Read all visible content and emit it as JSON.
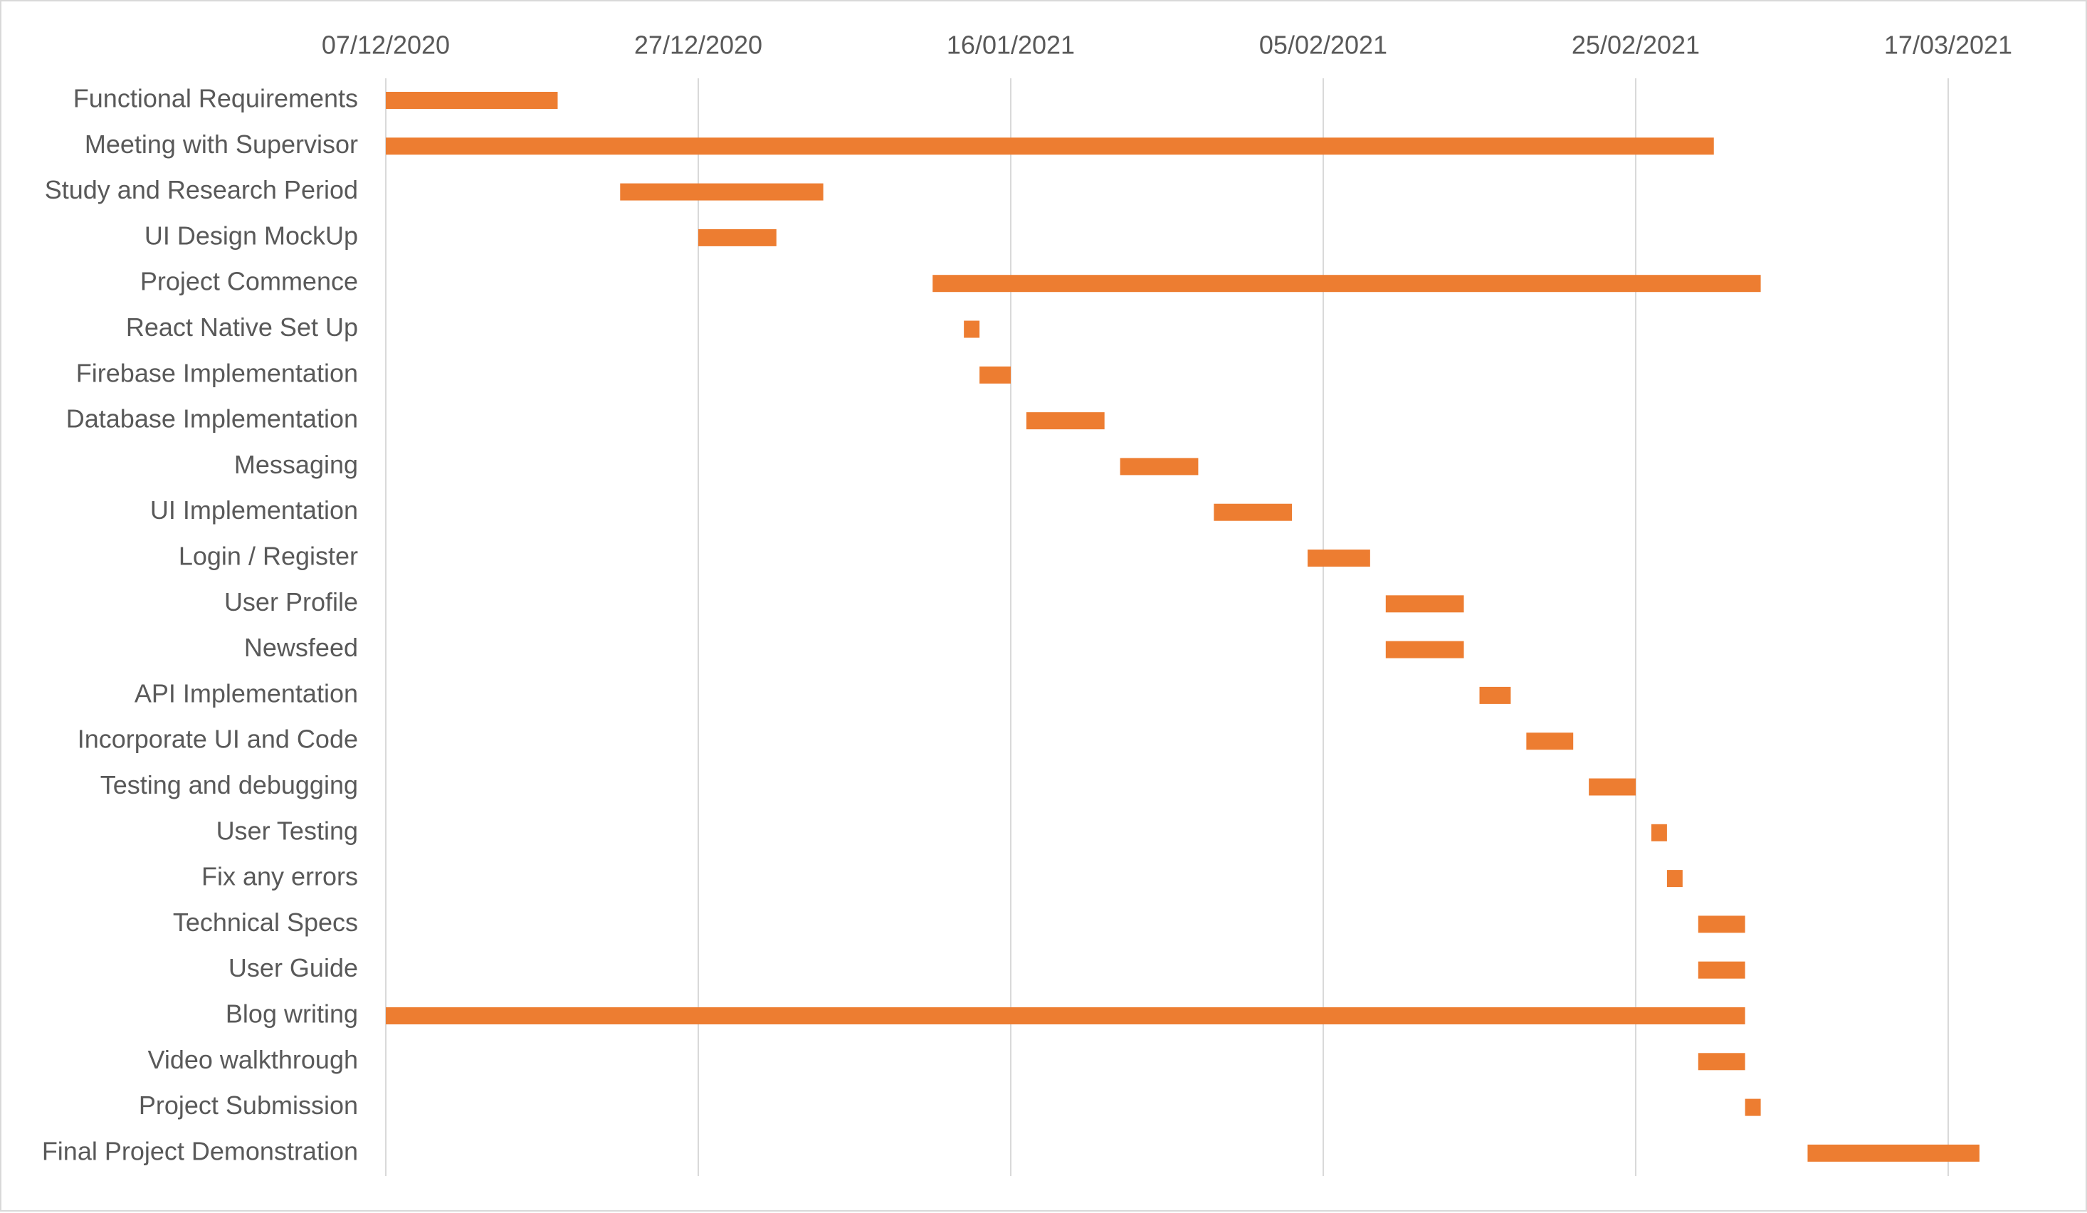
{
  "chart_data": {
    "type": "gantt-bar",
    "title": "",
    "xlabel": "",
    "ylabel": "",
    "x_axis": {
      "position": "top",
      "type": "date",
      "range": [
        "2020-12-07",
        "2021-03-17"
      ],
      "tick_step_days": 20,
      "tick_labels": [
        "07/12/2020",
        "27/12/2020",
        "16/01/2021",
        "05/02/2021",
        "25/02/2021",
        "17/03/2021"
      ],
      "grid": true
    },
    "legend": "none",
    "bar_color": "#ED7D31",
    "grid_color": "#D9D9D9",
    "label_color": "#595959",
    "tasks": [
      {
        "name": "Functional Requirements",
        "start": "2020-12-07",
        "end": "2020-12-18"
      },
      {
        "name": "Meeting with Supervisor",
        "start": "2020-12-07",
        "end": "2021-03-02"
      },
      {
        "name": "Study and Research Period",
        "start": "2020-12-22",
        "end": "2021-01-04"
      },
      {
        "name": "UI Design MockUp",
        "start": "2020-12-27",
        "end": "2021-01-01"
      },
      {
        "name": "Project Commence",
        "start": "2021-01-11",
        "end": "2021-03-05"
      },
      {
        "name": "React Native Set Up",
        "start": "2021-01-13",
        "end": "2021-01-14"
      },
      {
        "name": "Firebase Implementation",
        "start": "2021-01-14",
        "end": "2021-01-16"
      },
      {
        "name": "Database Implementation",
        "start": "2021-01-17",
        "end": "2021-01-22"
      },
      {
        "name": "Messaging",
        "start": "2021-01-23",
        "end": "2021-01-28"
      },
      {
        "name": "UI Implementation",
        "start": "2021-01-29",
        "end": "2021-02-03"
      },
      {
        "name": "Login / Register",
        "start": "2021-02-04",
        "end": "2021-02-08"
      },
      {
        "name": "User Profile",
        "start": "2021-02-09",
        "end": "2021-02-14"
      },
      {
        "name": "Newsfeed",
        "start": "2021-02-09",
        "end": "2021-02-14"
      },
      {
        "name": "API Implementation",
        "start": "2021-02-15",
        "end": "2021-02-17"
      },
      {
        "name": "Incorporate UI and Code",
        "start": "2021-02-18",
        "end": "2021-02-21"
      },
      {
        "name": "Testing and debugging",
        "start": "2021-02-22",
        "end": "2021-02-25"
      },
      {
        "name": "User Testing",
        "start": "2021-02-26",
        "end": "2021-02-27"
      },
      {
        "name": "Fix any errors",
        "start": "2021-02-27",
        "end": "2021-02-28"
      },
      {
        "name": "Technical Specs",
        "start": "2021-03-01",
        "end": "2021-03-04"
      },
      {
        "name": "User Guide",
        "start": "2021-03-01",
        "end": "2021-03-04"
      },
      {
        "name": "Blog writing",
        "start": "2020-12-07",
        "end": "2021-03-04"
      },
      {
        "name": "Video walkthrough",
        "start": "2021-03-01",
        "end": "2021-03-04"
      },
      {
        "name": "Project Submission",
        "start": "2021-03-04",
        "end": "2021-03-05"
      },
      {
        "name": "Final Project Demonstration",
        "start": "2021-03-08",
        "end": "2021-03-19"
      }
    ]
  }
}
